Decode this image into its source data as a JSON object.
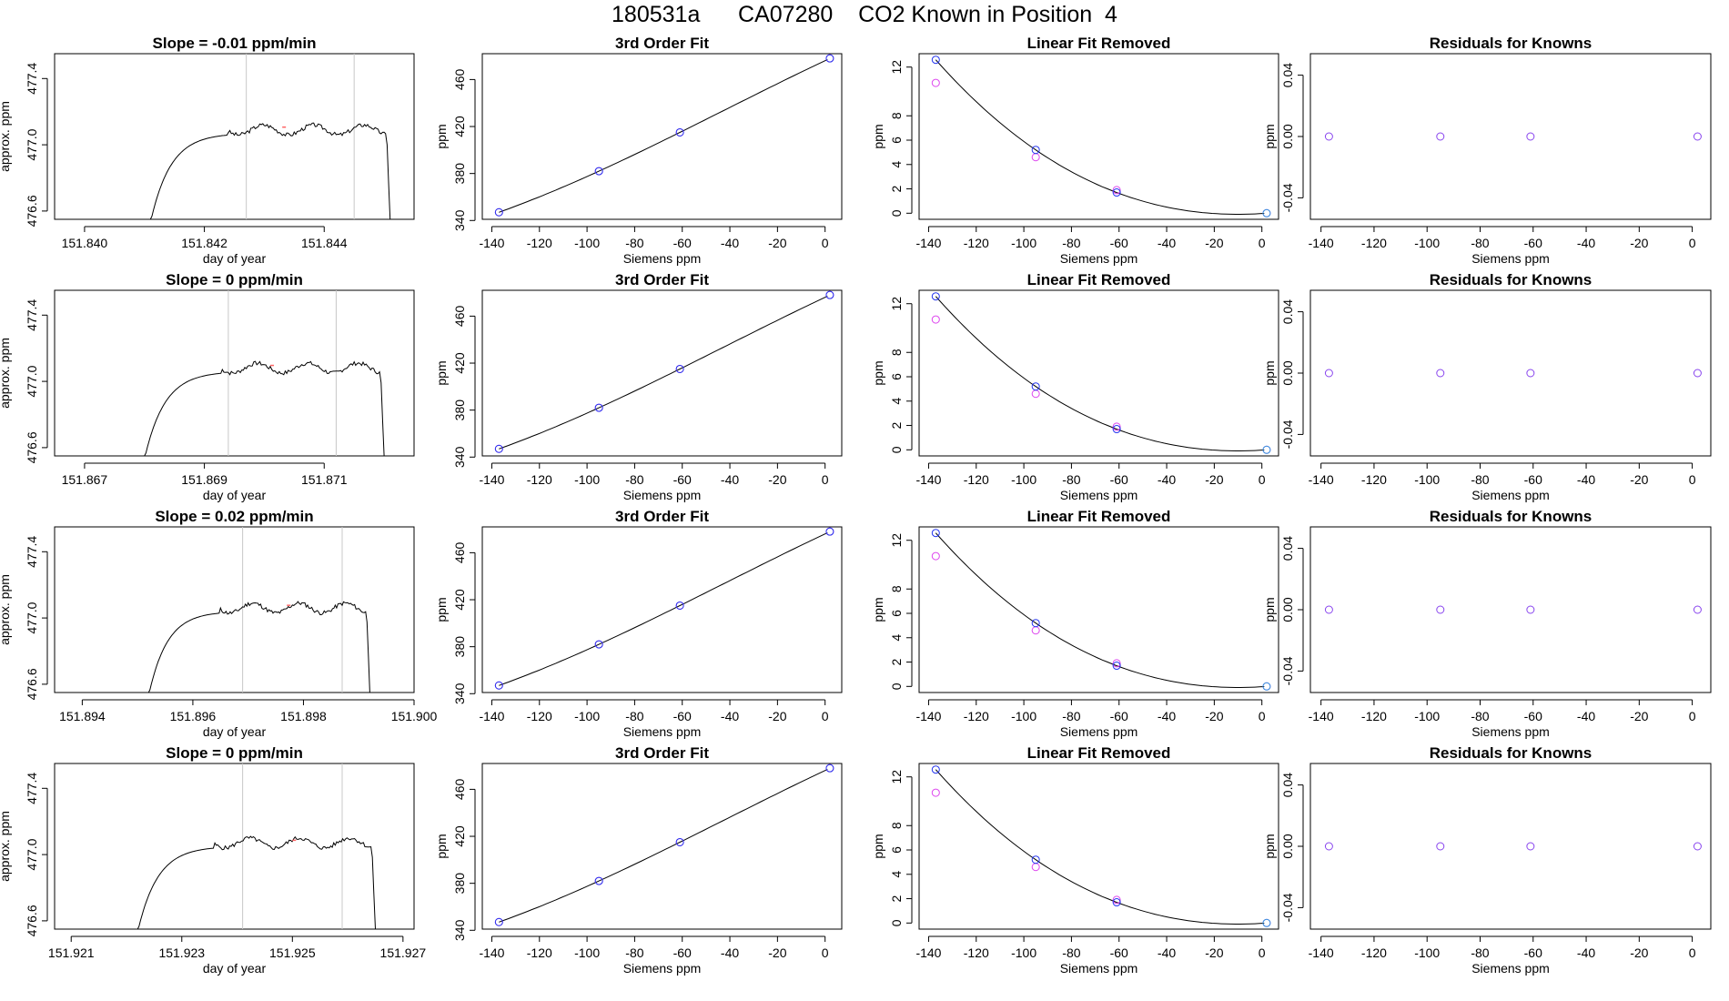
{
  "page": {
    "title": "180531a      CA07280    CO2 Known in Position  4"
  },
  "colors": {
    "axis": "#000000",
    "curve": "#000000",
    "vline": "#c8c8c8",
    "blue_point": "#2233ee",
    "magenta_point": "#dd44ee",
    "cyan_point": "#3399dd",
    "purple_point": "#8844ee",
    "red_tick": "#ff6666"
  },
  "shared": {
    "knowns_x": [
      -137,
      -95,
      -61,
      2
    ],
    "knowns_ppm": [
      347,
      382,
      415,
      478
    ],
    "linear_removed_fit": [
      12.6,
      5.2,
      1.7,
      0.0
    ],
    "linear_removed_obs": [
      10.7,
      4.6,
      1.9,
      0.0
    ],
    "residuals": [
      0.0,
      0.0,
      0.0,
      0.0
    ]
  },
  "chart_data": [
    {
      "type": "line",
      "row": 1,
      "title": "Slope =  -0.01  ppm/min",
      "xlabel": "day of year",
      "ylabel": "approx. ppm",
      "xlim": [
        151.8395,
        151.8455
      ],
      "ylim": [
        476.55,
        477.55
      ],
      "xticks": [
        151.84,
        151.842,
        151.844
      ],
      "xtick_labels": [
        "151.840",
        "151.842",
        "151.844"
      ],
      "yticks": [
        476.6,
        477.0,
        477.4
      ],
      "ytick_labels": [
        "476.6",
        "477.0",
        "477.4"
      ],
      "start": 151.8411,
      "end": 151.8451,
      "vlines": [
        151.8427,
        151.8445
      ],
      "red_mark": 151.8433,
      "plateau": 477.09,
      "shape_seed": 3
    },
    {
      "type": "line",
      "row": 2,
      "title": "Slope =  0  ppm/min",
      "xlabel": "day of year",
      "ylabel": "approx. ppm",
      "xlim": [
        151.8665,
        151.8725
      ],
      "ylim": [
        476.55,
        477.55
      ],
      "xticks": [
        151.867,
        151.869,
        151.871
      ],
      "xtick_labels": [
        "151.867",
        "151.869",
        "151.871"
      ],
      "yticks": [
        476.6,
        477.0,
        477.4
      ],
      "ytick_labels": [
        "476.6",
        "477.0",
        "477.4"
      ],
      "start": 151.868,
      "end": 151.872,
      "vlines": [
        151.8694,
        151.8712
      ],
      "red_mark": 151.8701,
      "plateau": 477.08,
      "shape_seed": 7
    },
    {
      "type": "line",
      "row": 3,
      "title": "Slope =  0.02  ppm/min",
      "xlabel": "day of year",
      "ylabel": "approx. ppm",
      "xlim": [
        151.8935,
        151.9
      ],
      "ylim": [
        476.55,
        477.55
      ],
      "xticks": [
        151.894,
        151.896,
        151.898,
        151.9
      ],
      "xtick_labels": [
        "151.894",
        "151.896",
        "151.898",
        "151.900"
      ],
      "yticks": [
        476.6,
        477.0,
        477.4
      ],
      "ytick_labels": [
        "476.6",
        "477.0",
        "477.4"
      ],
      "start": 151.8952,
      "end": 151.8992,
      "vlines": [
        151.8969,
        151.8987
      ],
      "red_mark": 151.8977,
      "plateau": 477.06,
      "shape_seed": 11
    },
    {
      "type": "line",
      "row": 4,
      "title": "Slope =  0  ppm/min",
      "xlabel": "day of year",
      "ylabel": "approx. ppm",
      "xlim": [
        151.9207,
        151.9272
      ],
      "ylim": [
        476.55,
        477.55
      ],
      "xticks": [
        151.921,
        151.923,
        151.925,
        151.927
      ],
      "xtick_labels": [
        "151.921",
        "151.923",
        "151.925",
        "151.927"
      ],
      "yticks": [
        476.6,
        477.0,
        477.4
      ],
      "ytick_labels": [
        "476.6",
        "477.0",
        "477.4"
      ],
      "start": 151.9222,
      "end": 151.9265,
      "vlines": [
        151.9241,
        151.9259
      ],
      "red_mark": 151.925,
      "plateau": 477.07,
      "shape_seed": 5
    },
    {
      "type": "scatter",
      "row": 1,
      "title": "3rd Order Fit",
      "xlabel": "Siemens ppm",
      "ylabel": "ppm",
      "xlim": [
        -144,
        7
      ],
      "ylim": [
        341,
        482
      ],
      "xticks": [
        -140,
        -120,
        -100,
        -80,
        -60,
        -40,
        -20,
        0
      ],
      "xtick_labels": [
        "-140",
        "-120",
        "-100",
        "-80",
        "-60",
        "-40",
        "-20",
        "0"
      ],
      "yticks": [
        340,
        380,
        420,
        460
      ],
      "ytick_labels": [
        "340",
        "380",
        "420",
        "460"
      ]
    },
    {
      "type": "scatter",
      "row": 2,
      "title": "3rd Order Fit",
      "xlabel": "Siemens ppm",
      "ylabel": "ppm",
      "xlim": [
        -144,
        7
      ],
      "ylim": [
        341,
        482
      ],
      "xticks": [
        -140,
        -120,
        -100,
        -80,
        -60,
        -40,
        -20,
        0
      ],
      "xtick_labels": [
        "-140",
        "-120",
        "-100",
        "-80",
        "-60",
        "-40",
        "-20",
        "0"
      ],
      "yticks": [
        340,
        380,
        420,
        460
      ],
      "ytick_labels": [
        "340",
        "380",
        "420",
        "460"
      ]
    },
    {
      "type": "scatter",
      "row": 3,
      "title": "3rd Order Fit",
      "xlabel": "Siemens ppm",
      "ylabel": "ppm",
      "xlim": [
        -144,
        7
      ],
      "ylim": [
        341,
        482
      ],
      "xticks": [
        -140,
        -120,
        -100,
        -80,
        -60,
        -40,
        -20,
        0
      ],
      "xtick_labels": [
        "-140",
        "-120",
        "-100",
        "-80",
        "-60",
        "-40",
        "-20",
        "0"
      ],
      "yticks": [
        340,
        380,
        420,
        460
      ],
      "ytick_labels": [
        "340",
        "380",
        "420",
        "460"
      ]
    },
    {
      "type": "scatter",
      "row": 4,
      "title": "3rd Order Fit",
      "xlabel": "Siemens ppm",
      "ylabel": "ppm",
      "xlim": [
        -144,
        7
      ],
      "ylim": [
        341,
        482
      ],
      "xticks": [
        -140,
        -120,
        -100,
        -80,
        -60,
        -40,
        -20,
        0
      ],
      "xtick_labels": [
        "-140",
        "-120",
        "-100",
        "-80",
        "-60",
        "-40",
        "-20",
        "0"
      ],
      "yticks": [
        340,
        380,
        420,
        460
      ],
      "ytick_labels": [
        "340",
        "380",
        "420",
        "460"
      ]
    },
    {
      "type": "scatter",
      "row": 1,
      "title": "Linear Fit Removed",
      "xlabel": "Siemens ppm",
      "ylabel": "ppm",
      "xlim": [
        -144,
        7
      ],
      "ylim": [
        -0.5,
        13.1
      ],
      "xticks": [
        -140,
        -120,
        -100,
        -80,
        -60,
        -40,
        -20,
        0
      ],
      "xtick_labels": [
        "-140",
        "-120",
        "-100",
        "-80",
        "-60",
        "-40",
        "-20",
        "0"
      ],
      "yticks": [
        0,
        2,
        4,
        6,
        8,
        12
      ],
      "ytick_labels": [
        "0",
        "2",
        "4",
        "6",
        "8",
        "12"
      ]
    },
    {
      "type": "scatter",
      "row": 2,
      "title": "Linear Fit Removed",
      "xlabel": "Siemens ppm",
      "ylabel": "ppm",
      "xlim": [
        -144,
        7
      ],
      "ylim": [
        -0.5,
        13.1
      ],
      "xticks": [
        -140,
        -120,
        -100,
        -80,
        -60,
        -40,
        -20,
        0
      ],
      "xtick_labels": [
        "-140",
        "-120",
        "-100",
        "-80",
        "-60",
        "-40",
        "-20",
        "0"
      ],
      "yticks": [
        0,
        2,
        4,
        6,
        8,
        12
      ],
      "ytick_labels": [
        "0",
        "2",
        "4",
        "6",
        "8",
        "12"
      ]
    },
    {
      "type": "scatter",
      "row": 3,
      "title": "Linear Fit Removed",
      "xlabel": "Siemens ppm",
      "ylabel": "ppm",
      "xlim": [
        -144,
        7
      ],
      "ylim": [
        -0.5,
        13.1
      ],
      "xticks": [
        -140,
        -120,
        -100,
        -80,
        -60,
        -40,
        -20,
        0
      ],
      "xtick_labels": [
        "-140",
        "-120",
        "-100",
        "-80",
        "-60",
        "-40",
        "-20",
        "0"
      ],
      "yticks": [
        0,
        2,
        4,
        6,
        8,
        12
      ],
      "ytick_labels": [
        "0",
        "2",
        "4",
        "6",
        "8",
        "12"
      ]
    },
    {
      "type": "scatter",
      "row": 4,
      "title": "Linear Fit Removed",
      "xlabel": "Siemens ppm",
      "ylabel": "ppm",
      "xlim": [
        -144,
        7
      ],
      "ylim": [
        -0.5,
        13.1
      ],
      "xticks": [
        -140,
        -120,
        -100,
        -80,
        -60,
        -40,
        -20,
        0
      ],
      "xtick_labels": [
        "-140",
        "-120",
        "-100",
        "-80",
        "-60",
        "-40",
        "-20",
        "0"
      ],
      "yticks": [
        0,
        2,
        4,
        6,
        8,
        12
      ],
      "ytick_labels": [
        "0",
        "2",
        "4",
        "6",
        "8",
        "12"
      ]
    },
    {
      "type": "scatter",
      "row": 1,
      "title": "Residuals for Knowns",
      "xlabel": "Siemens ppm",
      "ylabel": "ppm",
      "xlim": [
        -144,
        7
      ],
      "ylim": [
        -0.054,
        0.054
      ],
      "xticks": [
        -140,
        -120,
        -100,
        -80,
        -60,
        -40,
        -20,
        0
      ],
      "xtick_labels": [
        "-140",
        "-120",
        "-100",
        "-80",
        "-60",
        "-40",
        "-20",
        "0"
      ],
      "yticks": [
        -0.04,
        0.0,
        0.04
      ],
      "ytick_labels": [
        "-0.04",
        "0.00",
        "0.04"
      ]
    },
    {
      "type": "scatter",
      "row": 2,
      "title": "Residuals for Knowns",
      "xlabel": "Siemens ppm",
      "ylabel": "ppm",
      "xlim": [
        -144,
        7
      ],
      "ylim": [
        -0.054,
        0.054
      ],
      "xticks": [
        -140,
        -120,
        -100,
        -80,
        -60,
        -40,
        -20,
        0
      ],
      "xtick_labels": [
        "-140",
        "-120",
        "-100",
        "-80",
        "-60",
        "-40",
        "-20",
        "0"
      ],
      "yticks": [
        -0.04,
        0.0,
        0.04
      ],
      "ytick_labels": [
        "-0.04",
        "0.00",
        "0.04"
      ]
    },
    {
      "type": "scatter",
      "row": 3,
      "title": "Residuals for Knowns",
      "xlabel": "Siemens ppm",
      "ylabel": "ppm",
      "xlim": [
        -144,
        7
      ],
      "ylim": [
        -0.054,
        0.054
      ],
      "xticks": [
        -140,
        -120,
        -100,
        -80,
        -60,
        -40,
        -20,
        0
      ],
      "xtick_labels": [
        "-140",
        "-120",
        "-100",
        "-80",
        "-60",
        "-40",
        "-20",
        "0"
      ],
      "yticks": [
        -0.04,
        0.0,
        0.04
      ],
      "ytick_labels": [
        "-0.04",
        "0.00",
        "0.04"
      ]
    },
    {
      "type": "scatter",
      "row": 4,
      "title": "Residuals for Knowns",
      "xlabel": "Siemens ppm",
      "ylabel": "ppm",
      "xlim": [
        -144,
        7
      ],
      "ylim": [
        -0.054,
        0.054
      ],
      "xticks": [
        -140,
        -120,
        -100,
        -80,
        -60,
        -40,
        -20,
        0
      ],
      "xtick_labels": [
        "-140",
        "-120",
        "-100",
        "-80",
        "-60",
        "-40",
        "-20",
        "0"
      ],
      "yticks": [
        -0.04,
        0.0,
        0.04
      ],
      "ytick_labels": [
        "-0.04",
        "0.00",
        "0.04"
      ]
    }
  ]
}
